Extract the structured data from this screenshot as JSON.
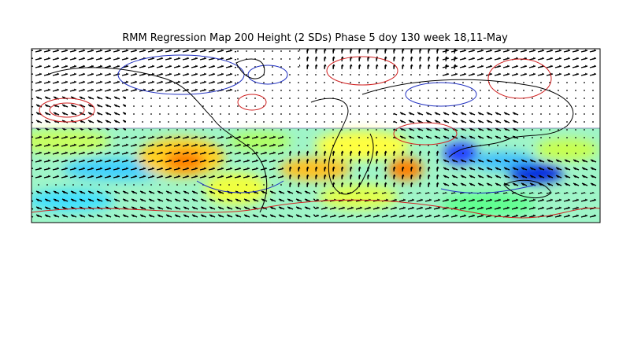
{
  "map": {
    "title": "RMM Regression Map 200 Height (2 SDs) Phase 5 doy 130 week 18,11-May"
  }
}
